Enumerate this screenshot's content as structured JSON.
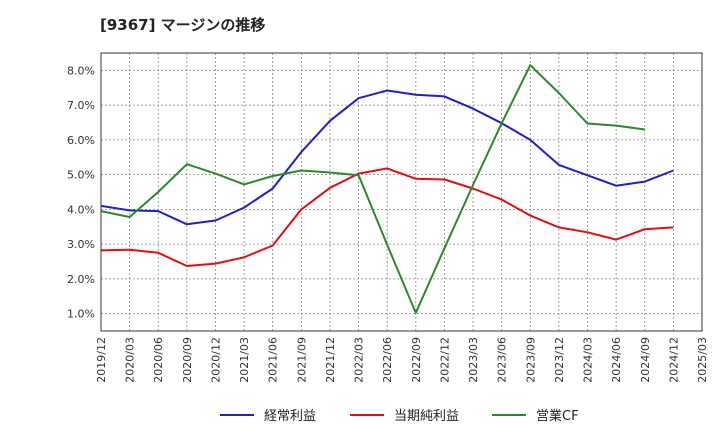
{
  "title": "[9367]  マージンの推移",
  "chart_data": {
    "type": "line",
    "x": [
      "2019/12",
      "2020/03",
      "2020/06",
      "2020/09",
      "2020/12",
      "2021/03",
      "2021/06",
      "2021/09",
      "2021/12",
      "2022/03",
      "2022/06",
      "2022/09",
      "2022/12",
      "2023/03",
      "2023/06",
      "2023/09",
      "2023/12",
      "2024/03",
      "2024/06",
      "2024/09",
      "2024/12",
      "2025/03"
    ],
    "ylim": [
      0.5,
      8.5
    ],
    "yticks": [
      1.0,
      2.0,
      3.0,
      4.0,
      5.0,
      6.0,
      7.0,
      8.0
    ],
    "ytick_labels": [
      "1.0%",
      "2.0%",
      "3.0%",
      "4.0%",
      "5.0%",
      "6.0%",
      "7.0%",
      "8.0%"
    ],
    "grid": true,
    "legend_position": "bottom",
    "series": [
      {
        "name": "経常利益",
        "color": "#1f1fcc",
        "values": [
          4.1,
          3.97,
          3.95,
          3.57,
          3.68,
          4.05,
          4.6,
          5.65,
          6.55,
          7.2,
          7.42,
          7.3,
          7.25,
          6.9,
          6.48,
          6.0,
          5.28,
          4.98,
          4.68,
          4.8,
          5.12,
          null
        ]
      },
      {
        "name": "当期純利益",
        "color": "#e01010",
        "values": [
          2.82,
          2.84,
          2.75,
          2.37,
          2.44,
          2.62,
          2.96,
          4.0,
          4.62,
          5.03,
          5.18,
          4.88,
          4.86,
          4.6,
          4.28,
          3.82,
          3.48,
          3.34,
          3.13,
          3.43,
          3.48,
          null
        ]
      },
      {
        "name": "営業CF",
        "color": "#2a8a2a",
        "values": [
          3.95,
          3.78,
          4.5,
          5.3,
          5.03,
          4.72,
          4.96,
          5.12,
          5.06,
          4.98,
          2.98,
          1.02,
          2.88,
          4.7,
          6.48,
          8.15,
          7.35,
          6.47,
          6.41,
          6.3,
          null,
          null
        ]
      }
    ]
  }
}
